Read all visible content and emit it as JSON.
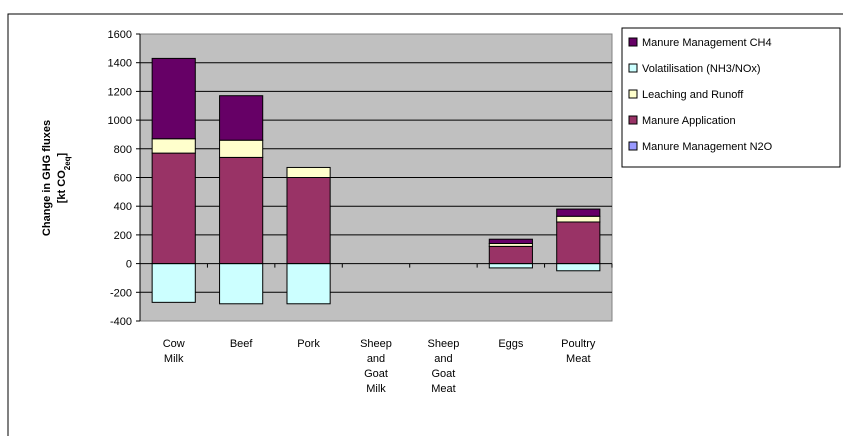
{
  "chart_data": {
    "type": "bar",
    "stacked": true,
    "title": "",
    "xlabel": "",
    "ylabel": {
      "line1": "Change in GHG fluxes",
      "line2_main": "[kt CO",
      "line2_sub": "2eq",
      "line2_end": "]"
    },
    "ylim": [
      -400,
      1600
    ],
    "yticks": [
      -400,
      -200,
      0,
      200,
      400,
      600,
      800,
      1000,
      1200,
      1400,
      1600
    ],
    "grid": true,
    "legend_position": "right",
    "categories": [
      [
        "Cow",
        "Milk"
      ],
      [
        "Beef"
      ],
      [
        "Pork"
      ],
      [
        "Sheep",
        "and",
        "Goat",
        "Milk"
      ],
      [
        "Sheep",
        "and",
        "Goat",
        "Meat"
      ],
      [
        "Eggs"
      ],
      [
        "Poultry",
        "Meat"
      ]
    ],
    "series": [
      {
        "name": "Manure Management N2O",
        "color": "#9999FF",
        "values": [
          0,
          0,
          0,
          0,
          0,
          0,
          0
        ]
      },
      {
        "name": "Manure Application",
        "color": "#993366",
        "values": [
          770,
          740,
          600,
          0,
          0,
          120,
          290
        ]
      },
      {
        "name": "Leaching and Runoff",
        "color": "#FFFFCC",
        "values": [
          100,
          120,
          70,
          0,
          0,
          20,
          40
        ]
      },
      {
        "name": "Volatilisation (NH3/NOx)",
        "color": "#CCFFFF",
        "values": [
          -270,
          -280,
          -280,
          0,
          0,
          -30,
          -50
        ]
      },
      {
        "name": "Manure Management CH4",
        "color": "#660066",
        "values": [
          560,
          310,
          0,
          0,
          0,
          30,
          50
        ]
      }
    ],
    "legend_order": [
      "Manure Management CH4",
      "Volatilisation (NH3/NOx)",
      "Leaching and Runoff",
      "Manure Application",
      "Manure Management N2O"
    ]
  },
  "colors": {
    "plot_area": "#C0C0C0",
    "gridline": "#000000",
    "frame": "#000000",
    "background": "#FFFFFF"
  }
}
